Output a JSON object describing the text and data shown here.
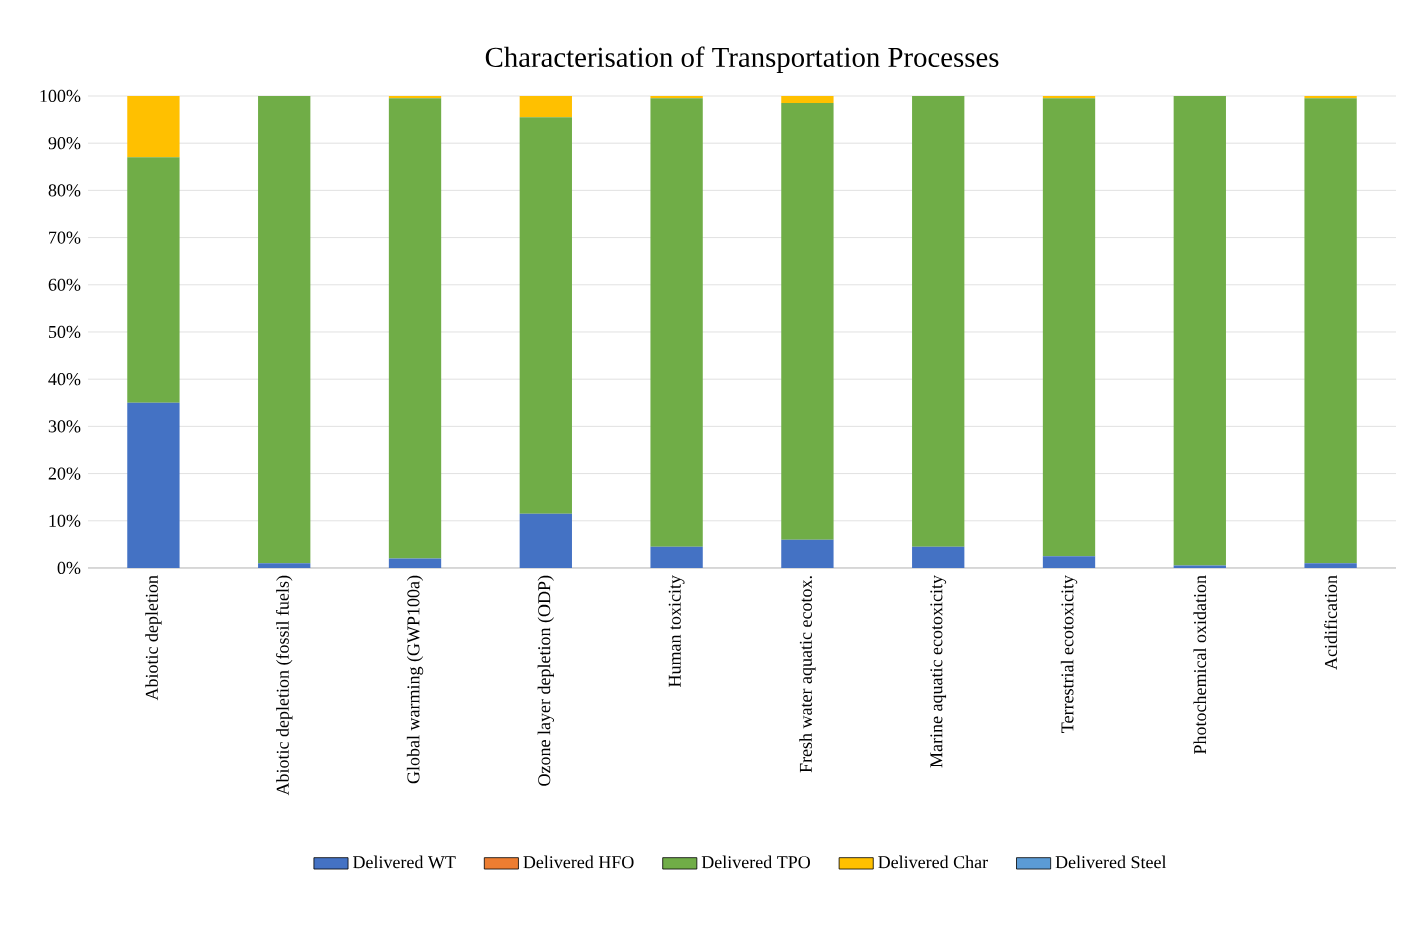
{
  "chart_data": {
    "type": "bar",
    "title": "Characterisation of Transportation Processes",
    "categories": [
      "Abiotic depletion",
      "Abiotic depletion (fossil fuels)",
      "Global warming (GWP100a)",
      "Ozone layer depletion (ODP)",
      "Human toxicity",
      "Fresh water aquatic ecotox.",
      "Marine aquatic ecotoxicity",
      "Terrestrial ecotoxicity",
      "Photochemical oxidation",
      "Acidification"
    ],
    "series": [
      {
        "name": "Delivered WT",
        "color": "#4472c4",
        "values": [
          35,
          1,
          2,
          11.5,
          4.5,
          6,
          4.5,
          2.5,
          0.5,
          1
        ]
      },
      {
        "name": "Delivered HFO",
        "color": "#ed7d31",
        "values": [
          0,
          0,
          0,
          0,
          0,
          0,
          0,
          0,
          0,
          0
        ]
      },
      {
        "name": "Delivered TPO",
        "color": "#70ad47",
        "values": [
          52,
          99,
          97.5,
          84,
          95,
          92.5,
          95.5,
          97,
          99.5,
          98.5
        ]
      },
      {
        "name": "Delivered Char",
        "color": "#ffc000",
        "values": [
          13,
          0,
          0.5,
          4.5,
          0.5,
          1.5,
          0,
          0.5,
          0,
          0.5
        ]
      },
      {
        "name": "Delivered Steel",
        "color": "#5b9bd5",
        "values": [
          0,
          0,
          0,
          0,
          0,
          0,
          0,
          0,
          0,
          0
        ]
      }
    ],
    "stacked": true,
    "ylim": [
      0,
      100
    ],
    "yticks": [
      {
        "value": 0,
        "label": "0%"
      },
      {
        "value": 10,
        "label": "10%"
      },
      {
        "value": 20,
        "label": "20%"
      },
      {
        "value": 30,
        "label": "30%"
      },
      {
        "value": 40,
        "label": "40%"
      },
      {
        "value": 50,
        "label": "50%"
      },
      {
        "value": 60,
        "label": "60%"
      },
      {
        "value": 70,
        "label": "70%"
      },
      {
        "value": 80,
        "label": "80%"
      },
      {
        "value": 90,
        "label": "90%"
      },
      {
        "value": 100,
        "label": "100%"
      }
    ],
    "grid": "y",
    "legend": "bottom"
  }
}
